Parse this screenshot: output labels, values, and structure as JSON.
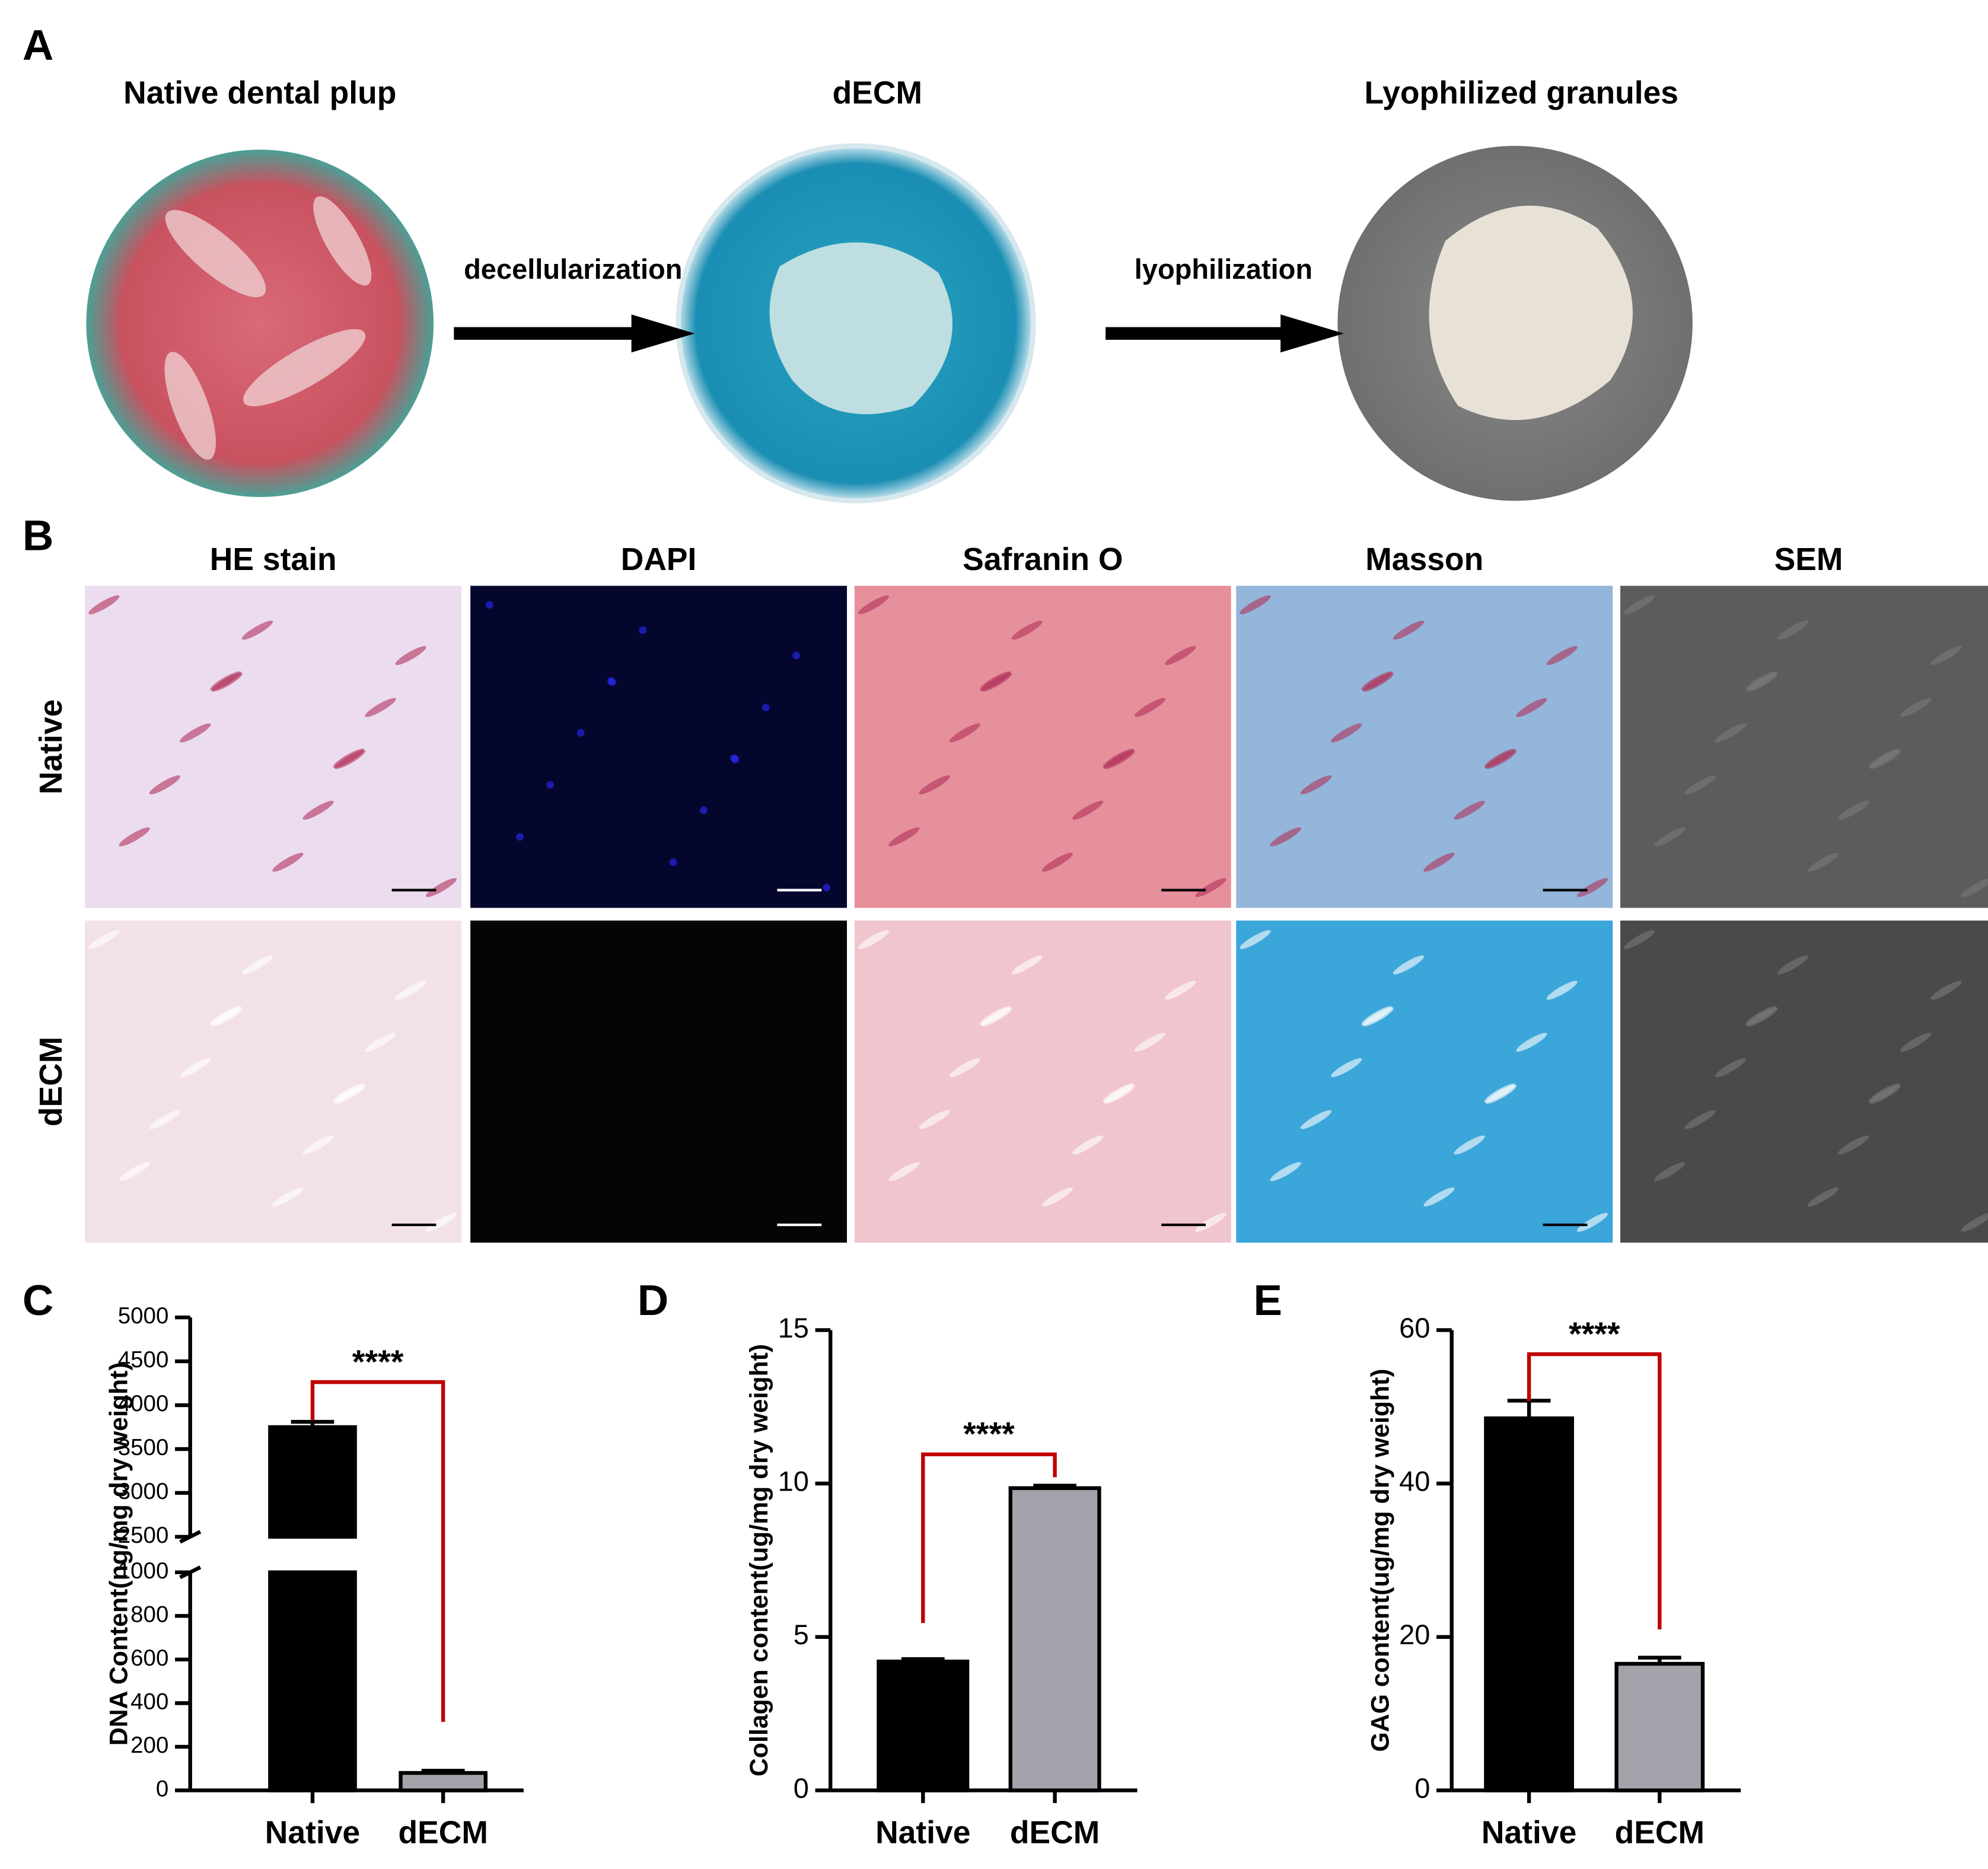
{
  "panel_a": {
    "label": "A",
    "steps": [
      {
        "title": "Native dental plup"
      },
      {
        "title": "dECM"
      },
      {
        "title": "Lyophilized granules"
      }
    ],
    "arrows": [
      "decellularization",
      "lyophilization"
    ]
  },
  "panel_b": {
    "label": "B",
    "columns": [
      "HE stain",
      "DAPI",
      "Safranin O",
      "Masson",
      "SEM"
    ],
    "rows": [
      "Native",
      "dECM"
    ]
  },
  "chart_data": [
    {
      "panel": "C",
      "type": "bar",
      "ylabel": "DNA Content(ng/mg dry weight)",
      "categories": [
        "Native",
        "dECM"
      ],
      "values": [
        3750,
        80
      ],
      "errors": [
        60,
        10
      ],
      "colors": [
        "#000000",
        "#a3a3ab"
      ],
      "ylim": [
        0,
        5000
      ],
      "yticks": [
        0,
        200,
        400,
        600,
        800,
        1000,
        2500,
        3000,
        3500,
        4000,
        4500,
        5000
      ],
      "ybreak": [
        1000,
        2500
      ],
      "annotation": "****",
      "annotation_color": "#9a5a10",
      "bracket_color": "#c00000"
    },
    {
      "panel": "D",
      "type": "bar",
      "ylabel": "Collagen content(ug/mg dry weight)",
      "categories": [
        "Native",
        "dECM"
      ],
      "values": [
        4.2,
        9.85
      ],
      "errors": [
        0.08,
        0.08
      ],
      "colors": [
        "#000000",
        "#a3a3ab"
      ],
      "ylim": [
        0,
        15
      ],
      "yticks": [
        0,
        5,
        10,
        15
      ],
      "annotation": "****",
      "annotation_color": "#9a5a10",
      "bracket_color": "#c00000"
    },
    {
      "panel": "E",
      "type": "bar",
      "ylabel": "GAG content(ug/mg dry weight)",
      "categories": [
        "Native",
        "dECM"
      ],
      "values": [
        48.5,
        16.5
      ],
      "errors": [
        2.3,
        0.8
      ],
      "colors": [
        "#000000",
        "#a3a3ab"
      ],
      "ylim": [
        0,
        60
      ],
      "yticks": [
        0,
        20,
        40,
        60
      ],
      "annotation": "****",
      "annotation_color": "#9a5a10",
      "bracket_color": "#c00000"
    }
  ]
}
